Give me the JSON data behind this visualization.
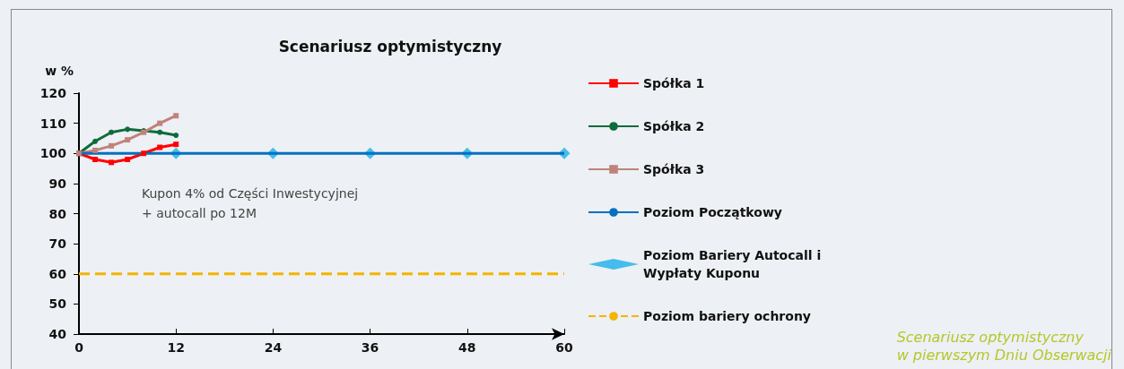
{
  "chart_data": {
    "type": "line",
    "title": "Scenariusz optymistyczny",
    "ylabel": "w %",
    "xlim": [
      0,
      60
    ],
    "xticks": [
      0,
      12,
      24,
      36,
      48,
      60
    ],
    "ylim": [
      40,
      120
    ],
    "yticks": [
      40,
      50,
      60,
      70,
      80,
      90,
      100,
      110,
      120
    ],
    "grid": false,
    "legend": "right",
    "series": [
      {
        "name": "Spółka 1",
        "color": "#ff0000",
        "marker": "square",
        "x": [
          0,
          2,
          4,
          6,
          8,
          10,
          12
        ],
        "values": [
          100,
          98,
          97,
          98,
          100,
          102,
          103
        ]
      },
      {
        "name": "Spółka 2",
        "color": "#0f6b3a",
        "marker": "circle",
        "x": [
          0,
          2,
          4,
          6,
          8,
          10,
          12
        ],
        "values": [
          100,
          104,
          107,
          108,
          107.5,
          107,
          106
        ]
      },
      {
        "name": "Spółka 3",
        "color": "#c0837a",
        "marker": "square",
        "x": [
          0,
          2,
          4,
          6,
          8,
          10,
          12
        ],
        "values": [
          100,
          101,
          102.5,
          104.5,
          107,
          110,
          112.5
        ]
      },
      {
        "name": "Poziom Początkowy",
        "color": "#0070c0",
        "marker": "none",
        "x": [
          0,
          60
        ],
        "values": [
          100,
          100
        ]
      },
      {
        "name": "Poziom Bariery Autocall i Wypłaty Kuponu",
        "type": "scatter",
        "color": "#1ab0ea",
        "marker": "diamond",
        "x": [
          12,
          24,
          36,
          48,
          60
        ],
        "values": [
          100,
          100,
          100,
          100,
          100
        ]
      },
      {
        "name": "Poziom bariery ochrony",
        "color": "#f5b400",
        "marker": "none",
        "line_style": "dashed",
        "x": [
          0,
          60
        ],
        "values": [
          60,
          60
        ]
      }
    ],
    "annotations": [
      "Kupon 4% od Części Inwestycyjnej\n+ autocall po 12M",
      "Scenariusz optymistyczny\nw pierwszym Dniu Obserwacji"
    ]
  }
}
